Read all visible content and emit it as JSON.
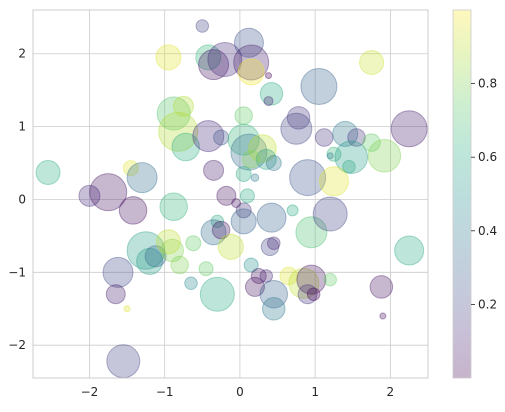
{
  "chart_data": {
    "type": "scatter",
    "title": "",
    "xlabel": "",
    "ylabel": "",
    "xlim": [
      -2.75,
      2.5
    ],
    "ylim": [
      -2.45,
      2.6
    ],
    "xticks": [
      -2,
      -1,
      0,
      1,
      2
    ],
    "xtick_labels": [
      "−2",
      "−1",
      "0",
      "1",
      "2"
    ],
    "yticks": [
      -2,
      -1,
      0,
      1,
      2
    ],
    "ytick_labels": [
      "−2",
      "−1",
      "0",
      "1",
      "2"
    ],
    "grid": true,
    "alpha": 0.3,
    "colormap": "viridis",
    "colorbar": {
      "range": [
        0.0,
        1.0
      ],
      "ticks": [
        0.2,
        0.4,
        0.6,
        0.8
      ],
      "tick_labels": [
        "0.2",
        "0.4",
        "0.6",
        "0.8"
      ]
    },
    "points": [
      {
        "x": -2.55,
        "y": 0.37,
        "size": 0.48,
        "c": 0.62
      },
      {
        "x": -2.0,
        "y": 0.05,
        "size": 0.42,
        "c": 0.12
      },
      {
        "x": -1.75,
        "y": 0.1,
        "size": 0.74,
        "c": 0.05
      },
      {
        "x": -1.42,
        "y": -0.15,
        "size": 0.55,
        "c": 0.04
      },
      {
        "x": -1.45,
        "y": 0.43,
        "size": 0.3,
        "c": 0.95
      },
      {
        "x": -1.3,
        "y": 0.3,
        "size": 0.6,
        "c": 0.35
      },
      {
        "x": -1.25,
        "y": -0.7,
        "size": 0.75,
        "c": 0.55
      },
      {
        "x": -1.2,
        "y": -0.85,
        "size": 0.52,
        "c": 0.55
      },
      {
        "x": -1.12,
        "y": -0.78,
        "size": 0.42,
        "c": 0.33
      },
      {
        "x": -1.62,
        "y": -1.0,
        "size": 0.6,
        "c": 0.22
      },
      {
        "x": -1.65,
        "y": -1.3,
        "size": 0.38,
        "c": 0.08
      },
      {
        "x": -1.55,
        "y": -2.22,
        "size": 0.66,
        "c": 0.2
      },
      {
        "x": -1.5,
        "y": -1.5,
        "size": 0.1,
        "c": 0.95
      },
      {
        "x": -0.88,
        "y": -0.1,
        "size": 0.55,
        "c": 0.65
      },
      {
        "x": -0.95,
        "y": 1.95,
        "size": 0.5,
        "c": 0.95
      },
      {
        "x": -0.88,
        "y": 1.18,
        "size": 0.66,
        "c": 0.72
      },
      {
        "x": -0.75,
        "y": 1.28,
        "size": 0.4,
        "c": 0.88
      },
      {
        "x": -0.82,
        "y": 0.93,
        "size": 0.78,
        "c": 0.88
      },
      {
        "x": -0.72,
        "y": 0.72,
        "size": 0.55,
        "c": 0.62
      },
      {
        "x": -0.42,
        "y": 0.87,
        "size": 0.62,
        "c": 0.12
      },
      {
        "x": -0.9,
        "y": -0.7,
        "size": 0.45,
        "c": 0.8
      },
      {
        "x": -0.95,
        "y": -0.58,
        "size": 0.48,
        "c": 0.9
      },
      {
        "x": -0.8,
        "y": -0.9,
        "size": 0.35,
        "c": 0.8
      },
      {
        "x": -0.62,
        "y": -0.6,
        "size": 0.3,
        "c": 0.75
      },
      {
        "x": -0.5,
        "y": 2.38,
        "size": 0.25,
        "c": 0.2
      },
      {
        "x": -0.42,
        "y": 1.95,
        "size": 0.5,
        "c": 0.65
      },
      {
        "x": -0.35,
        "y": 1.85,
        "size": 0.6,
        "c": 0.05
      },
      {
        "x": -0.2,
        "y": 1.92,
        "size": 0.68,
        "c": 0.12
      },
      {
        "x": 0.12,
        "y": 2.15,
        "size": 0.58,
        "c": 0.25
      },
      {
        "x": 0.15,
        "y": 1.88,
        "size": 0.7,
        "c": 0.08
      },
      {
        "x": 0.15,
        "y": 1.75,
        "size": 0.52,
        "c": 0.98
      },
      {
        "x": 0.38,
        "y": 1.7,
        "size": 0.12,
        "c": 0.0
      },
      {
        "x": 0.42,
        "y": 1.45,
        "size": 0.45,
        "c": 0.6
      },
      {
        "x": 0.38,
        "y": 1.35,
        "size": 0.18,
        "c": 0.1
      },
      {
        "x": 0.78,
        "y": 1.12,
        "size": 0.45,
        "c": 0.15
      },
      {
        "x": 1.05,
        "y": 1.55,
        "size": 0.72,
        "c": 0.3
      },
      {
        "x": 1.75,
        "y": 1.88,
        "size": 0.48,
        "c": 0.92
      },
      {
        "x": 2.25,
        "y": 0.97,
        "size": 0.72,
        "c": 0.08
      },
      {
        "x": -0.35,
        "y": 0.4,
        "size": 0.4,
        "c": 0.08
      },
      {
        "x": -0.25,
        "y": 0.85,
        "size": 0.3,
        "c": 0.25
      },
      {
        "x": 0.05,
        "y": 1.15,
        "size": 0.35,
        "c": 0.75
      },
      {
        "x": 0.05,
        "y": 0.82,
        "size": 0.62,
        "c": 0.65
      },
      {
        "x": 0.12,
        "y": 0.65,
        "size": 0.72,
        "c": 0.35
      },
      {
        "x": 0.3,
        "y": 0.7,
        "size": 0.55,
        "c": 0.9
      },
      {
        "x": 0.35,
        "y": 0.55,
        "size": 0.4,
        "c": 0.55
      },
      {
        "x": 0.45,
        "y": 0.5,
        "size": 0.3,
        "c": 0.4
      },
      {
        "x": 0.75,
        "y": 0.97,
        "size": 0.62,
        "c": 0.2
      },
      {
        "x": 1.12,
        "y": 0.85,
        "size": 0.35,
        "c": 0.15
      },
      {
        "x": 1.25,
        "y": 0.62,
        "size": 0.28,
        "c": 0.65
      },
      {
        "x": 1.4,
        "y": 0.9,
        "size": 0.5,
        "c": 0.4
      },
      {
        "x": 1.55,
        "y": 0.85,
        "size": 0.35,
        "c": 0.15
      },
      {
        "x": 1.48,
        "y": 0.58,
        "size": 0.65,
        "c": 0.55
      },
      {
        "x": 1.75,
        "y": 0.78,
        "size": 0.35,
        "c": 0.75
      },
      {
        "x": 1.92,
        "y": 0.6,
        "size": 0.65,
        "c": 0.8
      },
      {
        "x": 0.9,
        "y": 0.3,
        "size": 0.72,
        "c": 0.25
      },
      {
        "x": 1.25,
        "y": 0.25,
        "size": 0.58,
        "c": 0.95
      },
      {
        "x": 1.45,
        "y": 0.45,
        "size": 0.25,
        "c": 0.6
      },
      {
        "x": 1.2,
        "y": 0.6,
        "size": 0.12,
        "c": 0.4
      },
      {
        "x": -0.18,
        "y": 0.05,
        "size": 0.38,
        "c": 0.05
      },
      {
        "x": 0.05,
        "y": 0.35,
        "size": 0.3,
        "c": 0.6
      },
      {
        "x": 0.15,
        "y": 0.55,
        "size": 0.35,
        "c": 0.8
      },
      {
        "x": 0.2,
        "y": 0.3,
        "size": 0.15,
        "c": 0.4
      },
      {
        "x": 0.1,
        "y": 0.05,
        "size": 0.28,
        "c": 0.6
      },
      {
        "x": -0.05,
        "y": -0.05,
        "size": 0.18,
        "c": 0.05
      },
      {
        "x": 0.05,
        "y": -0.15,
        "size": 0.3,
        "c": 0.15
      },
      {
        "x": -0.3,
        "y": -0.3,
        "size": 0.25,
        "c": 0.6
      },
      {
        "x": -0.35,
        "y": -0.45,
        "size": 0.5,
        "c": 0.35
      },
      {
        "x": -0.25,
        "y": -0.42,
        "size": 0.35,
        "c": 0.05
      },
      {
        "x": 0.05,
        "y": -0.3,
        "size": 0.5,
        "c": 0.3
      },
      {
        "x": 0.42,
        "y": -0.25,
        "size": 0.58,
        "c": 0.3
      },
      {
        "x": 0.4,
        "y": -0.65,
        "size": 0.35,
        "c": 0.2
      },
      {
        "x": 0.45,
        "y": -0.6,
        "size": 0.25,
        "c": 0.1
      },
      {
        "x": 0.7,
        "y": -0.15,
        "size": 0.22,
        "c": 0.6
      },
      {
        "x": 0.95,
        "y": -0.45,
        "size": 0.62,
        "c": 0.7
      },
      {
        "x": 1.2,
        "y": -0.2,
        "size": 0.68,
        "c": 0.2
      },
      {
        "x": -0.45,
        "y": -0.95,
        "size": 0.28,
        "c": 0.75
      },
      {
        "x": -0.3,
        "y": -1.3,
        "size": 0.68,
        "c": 0.6
      },
      {
        "x": -0.65,
        "y": -1.15,
        "size": 0.25,
        "c": 0.45
      },
      {
        "x": 0.15,
        "y": -0.9,
        "size": 0.28,
        "c": 0.5
      },
      {
        "x": 0.2,
        "y": -1.2,
        "size": 0.38,
        "c": 0.05
      },
      {
        "x": 0.25,
        "y": -1.05,
        "size": 0.3,
        "c": 0.05
      },
      {
        "x": 0.35,
        "y": -1.05,
        "size": 0.25,
        "c": 0.1
      },
      {
        "x": 0.45,
        "y": -1.3,
        "size": 0.55,
        "c": 0.3
      },
      {
        "x": 0.45,
        "y": -1.5,
        "size": 0.45,
        "c": 0.4
      },
      {
        "x": 0.65,
        "y": -1.05,
        "size": 0.35,
        "c": 0.95
      },
      {
        "x": 0.85,
        "y": -1.15,
        "size": 0.6,
        "c": 0.9
      },
      {
        "x": 0.95,
        "y": -1.1,
        "size": 0.58,
        "c": 0.05
      },
      {
        "x": 0.9,
        "y": -1.3,
        "size": 0.38,
        "c": 0.15
      },
      {
        "x": 0.98,
        "y": -1.3,
        "size": 0.25,
        "c": 0.0
      },
      {
        "x": 1.2,
        "y": -1.1,
        "size": 0.25,
        "c": 0.75
      },
      {
        "x": 1.88,
        "y": -1.2,
        "size": 0.45,
        "c": 0.05
      },
      {
        "x": 1.9,
        "y": -1.6,
        "size": 0.12,
        "c": 0.05
      },
      {
        "x": 2.25,
        "y": -0.7,
        "size": 0.58,
        "c": 0.6
      },
      {
        "x": -0.12,
        "y": -0.65,
        "size": 0.5,
        "c": 0.9
      }
    ]
  }
}
